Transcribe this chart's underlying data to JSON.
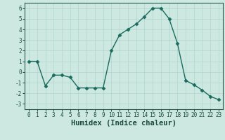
{
  "x": [
    0,
    1,
    2,
    3,
    4,
    5,
    6,
    7,
    8,
    9,
    10,
    11,
    12,
    13,
    14,
    15,
    16,
    17,
    18,
    19,
    20,
    21,
    22,
    23
  ],
  "y": [
    1.0,
    1.0,
    -1.3,
    -0.3,
    -0.3,
    -0.5,
    -1.5,
    -1.5,
    -1.5,
    -1.5,
    2.0,
    3.5,
    4.0,
    4.5,
    5.2,
    6.0,
    6.0,
    5.0,
    2.7,
    -0.8,
    -1.2,
    -1.7,
    -2.3,
    -2.6
  ],
  "line_color": "#1a6b5e",
  "marker": "D",
  "marker_size": 2.5,
  "bg_color": "#cce8e0",
  "grid_color": "#b0d4cc",
  "xlabel": "Humidex (Indice chaleur)",
  "xlim": [
    -0.5,
    23.5
  ],
  "ylim": [
    -3.5,
    6.5
  ],
  "yticks": [
    -3,
    -2,
    -1,
    0,
    1,
    2,
    3,
    4,
    5,
    6
  ],
  "xticks": [
    0,
    1,
    2,
    3,
    4,
    5,
    6,
    7,
    8,
    9,
    10,
    11,
    12,
    13,
    14,
    15,
    16,
    17,
    18,
    19,
    20,
    21,
    22,
    23
  ],
  "tick_fontsize": 5.5,
  "label_fontsize": 7.5,
  "linewidth": 1.0,
  "spine_color": "#2a5a50",
  "text_color": "#1a4a40"
}
